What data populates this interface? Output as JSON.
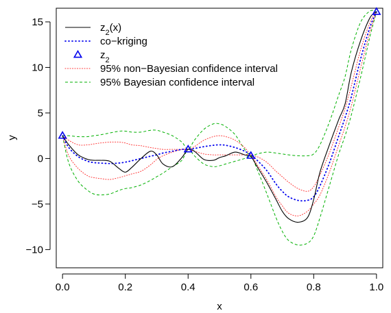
{
  "chart_data": {
    "type": "line",
    "xlabel": "x",
    "ylabel": "y",
    "xlim": [
      -0.02,
      1.02
    ],
    "ylim": [
      -12,
      16.5
    ],
    "xticks": [
      0.0,
      0.2,
      0.4,
      0.6,
      0.8,
      1.0
    ],
    "xtick_labels": [
      "0.0",
      "0.2",
      "0.4",
      "0.6",
      "0.8",
      "1.0"
    ],
    "yticks": [
      -10,
      -5,
      0,
      5,
      10,
      15
    ],
    "ytick_labels": [
      "−10",
      "−5",
      "0",
      "5",
      "10",
      "15"
    ],
    "grid": false,
    "legend_position": "top-left",
    "x": [
      0.0,
      0.02,
      0.05,
      0.08,
      0.1,
      0.12,
      0.15,
      0.18,
      0.2,
      0.22,
      0.25,
      0.28,
      0.3,
      0.32,
      0.35,
      0.38,
      0.4,
      0.42,
      0.45,
      0.48,
      0.5,
      0.52,
      0.55,
      0.58,
      0.6,
      0.62,
      0.65,
      0.68,
      0.7,
      0.72,
      0.75,
      0.78,
      0.8,
      0.82,
      0.85,
      0.88,
      0.9,
      0.92,
      0.95,
      0.98,
      1.0
    ],
    "series": [
      {
        "name": "z_2(x)",
        "label_main": "z",
        "label_sub": "2",
        "label_suffix": "(x)",
        "style": "solid",
        "color": "#000000",
        "values": [
          2.5,
          1.5,
          0.4,
          -0.1,
          -0.2,
          -0.2,
          -0.3,
          -1.1,
          -1.5,
          -1.0,
          0.0,
          0.8,
          0.4,
          -0.6,
          -0.9,
          0.1,
          1.0,
          0.8,
          -0.1,
          -0.2,
          0.1,
          0.3,
          0.7,
          0.4,
          0.2,
          -0.9,
          -2.6,
          -4.5,
          -5.8,
          -6.6,
          -7.0,
          -6.5,
          -4.5,
          -1.5,
          1.5,
          4.3,
          6.0,
          9.5,
          13.0,
          15.5,
          16.1
        ]
      },
      {
        "name": "co−kriging",
        "style": "dotted",
        "color": "#0000ee",
        "values": [
          2.5,
          1.2,
          0.2,
          -0.3,
          -0.45,
          -0.5,
          -0.55,
          -0.5,
          -0.4,
          -0.25,
          0.0,
          0.25,
          0.4,
          0.6,
          0.8,
          1.0,
          1.0,
          1.1,
          1.3,
          1.45,
          1.5,
          1.45,
          1.2,
          0.8,
          0.4,
          -0.2,
          -1.3,
          -2.8,
          -3.6,
          -4.2,
          -4.6,
          -4.6,
          -4.2,
          -3.0,
          -0.5,
          2.5,
          4.5,
          6.8,
          11.0,
          14.5,
          16.1
        ]
      },
      {
        "name": "95% non−Bayesian confidence interval (upper)",
        "style": "dotted-fine",
        "color": "#ff3030",
        "values": [
          2.5,
          2.0,
          1.5,
          1.5,
          1.6,
          1.7,
          1.8,
          1.8,
          1.7,
          1.5,
          1.4,
          1.2,
          1.1,
          1.0,
          1.0,
          1.0,
          1.0,
          1.3,
          2.0,
          2.4,
          2.5,
          2.4,
          2.0,
          1.2,
          0.4,
          0.2,
          -0.4,
          -1.4,
          -2.0,
          -2.6,
          -3.3,
          -3.6,
          -3.1,
          -1.8,
          0.6,
          3.5,
          5.5,
          8.0,
          12.0,
          15.0,
          16.1
        ]
      },
      {
        "name": "95% non−Bayesian confidence interval (lower)",
        "style": "dotted-fine",
        "color": "#ff3030",
        "values": [
          2.5,
          0.3,
          -1.1,
          -1.9,
          -2.1,
          -2.2,
          -2.3,
          -2.1,
          -1.9,
          -1.7,
          -1.4,
          -0.7,
          -0.1,
          0.3,
          0.7,
          1.0,
          1.0,
          0.8,
          0.5,
          0.4,
          0.4,
          0.4,
          0.4,
          0.4,
          0.4,
          -0.7,
          -2.3,
          -4.2,
          -5.2,
          -6.0,
          -6.3,
          -5.8,
          -5.0,
          -4.0,
          -1.5,
          1.5,
          3.5,
          5.8,
          10.0,
          14.0,
          16.1
        ]
      },
      {
        "name": "95% Bayesian confidence interval (upper)",
        "style": "dashed",
        "color": "#00b000",
        "values": [
          2.5,
          2.5,
          2.4,
          2.4,
          2.5,
          2.6,
          2.8,
          3.0,
          3.0,
          2.9,
          2.9,
          3.1,
          3.1,
          2.9,
          2.5,
          1.8,
          1.0,
          2.0,
          3.2,
          3.8,
          3.8,
          3.5,
          2.6,
          1.0,
          0.3,
          0.5,
          0.7,
          0.6,
          0.5,
          0.4,
          0.3,
          0.3,
          0.5,
          1.5,
          4.0,
          7.0,
          9.0,
          12.0,
          15.0,
          16.2,
          16.1
        ]
      },
      {
        "name": "95% Bayesian confidence interval (lower)",
        "style": "dashed",
        "color": "#00b000",
        "values": [
          2.5,
          -0.5,
          -2.5,
          -3.5,
          -3.9,
          -4.0,
          -3.9,
          -3.5,
          -3.3,
          -3.2,
          -2.9,
          -2.4,
          -2.0,
          -1.6,
          -0.9,
          -0.2,
          1.0,
          0.3,
          -0.6,
          -0.9,
          -0.8,
          -0.6,
          -0.3,
          0.0,
          0.3,
          -1.2,
          -3.8,
          -6.5,
          -8.0,
          -9.0,
          -9.5,
          -9.3,
          -8.5,
          -6.5,
          -3.0,
          0.5,
          2.5,
          4.8,
          9.0,
          13.5,
          16.1
        ]
      }
    ],
    "observations": {
      "name": "z_2",
      "label_main": "z",
      "label_sub": "2",
      "marker": "triangle",
      "color": "#0000ee",
      "x": [
        0.0,
        0.4,
        0.6,
        1.0
      ],
      "y": [
        2.5,
        1.0,
        0.3,
        16.1
      ]
    },
    "legend": [
      {
        "key": "solid",
        "main": "z",
        "sub": "2",
        "suffix": "(x)"
      },
      {
        "key": "cokriging",
        "main": "co−kriging"
      },
      {
        "key": "obs",
        "main": "z",
        "sub": "2"
      },
      {
        "key": "nonbayes",
        "main": "95% non−Bayesian confidence interval"
      },
      {
        "key": "bayes",
        "main": "95% Bayesian confidence interval"
      }
    ]
  }
}
